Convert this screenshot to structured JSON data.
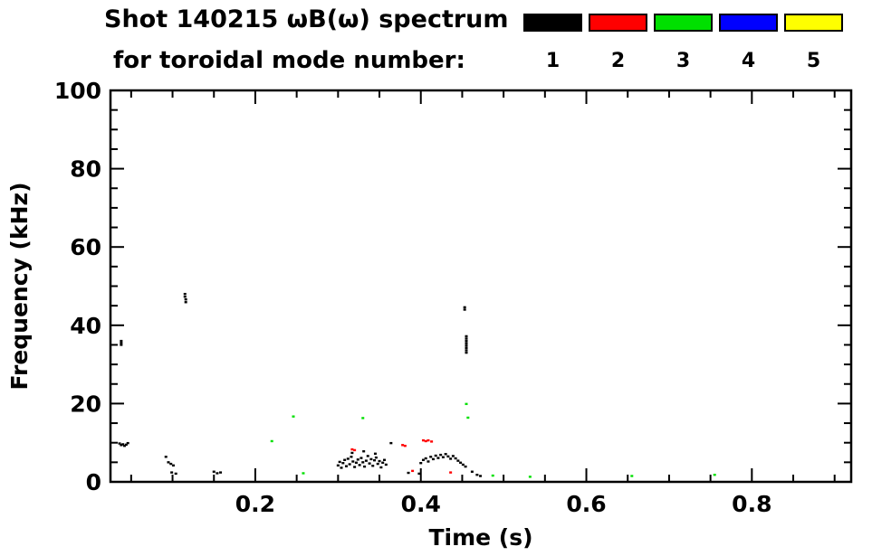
{
  "header": {
    "title_line1": "Shot 140215 ωB(ω) spectrum",
    "title_line2": "for toroidal mode number:"
  },
  "legend": {
    "items": [
      {
        "label": "1",
        "color": "#000000"
      },
      {
        "label": "2",
        "color": "#ff0000"
      },
      {
        "label": "3",
        "color": "#00e000"
      },
      {
        "label": "4",
        "color": "#0000ff"
      },
      {
        "label": "5",
        "color": "#ffff00"
      }
    ]
  },
  "chart_data": {
    "type": "scatter",
    "title": "Shot 140215 ωB(ω) spectrum for toroidal mode number",
    "xlabel": "Time (s)",
    "ylabel": "Frequency (kHz)",
    "xlim": [
      0.025,
      0.92
    ],
    "ylim": [
      0,
      100
    ],
    "xticks": [
      0.2,
      0.4,
      0.6,
      0.8
    ],
    "xtick_labels": [
      "0.2",
      "0.4",
      "0.6",
      "0.8"
    ],
    "x_minor_step": 0.05,
    "yticks": [
      0,
      20,
      40,
      60,
      80,
      100
    ],
    "ytick_labels": [
      "0",
      "20",
      "40",
      "60",
      "80",
      "100"
    ],
    "y_minor_step": 5,
    "grid": false,
    "legend_position": "top-right",
    "series": [
      {
        "name": "mode 1",
        "color": "#000000",
        "points": [
          [
            0.036,
            9.8
          ],
          [
            0.038,
            9.4
          ],
          [
            0.04,
            9.6
          ],
          [
            0.042,
            9.2
          ],
          [
            0.044,
            9.5
          ],
          [
            0.046,
            9.9
          ],
          [
            0.038,
            35.0
          ],
          [
            0.038,
            35.5
          ],
          [
            0.038,
            36.0
          ],
          [
            0.092,
            6.4
          ],
          [
            0.095,
            5.0
          ],
          [
            0.098,
            4.6
          ],
          [
            0.101,
            4.2
          ],
          [
            0.099,
            2.4
          ],
          [
            0.104,
            2.1
          ],
          [
            0.115,
            48.0
          ],
          [
            0.115,
            47.3
          ],
          [
            0.116,
            46.6
          ],
          [
            0.116,
            45.9
          ],
          [
            0.15,
            2.6
          ],
          [
            0.154,
            2.2
          ],
          [
            0.158,
            2.4
          ],
          [
            0.3,
            4.2
          ],
          [
            0.302,
            5.1
          ],
          [
            0.304,
            3.6
          ],
          [
            0.306,
            4.8
          ],
          [
            0.308,
            5.6
          ],
          [
            0.31,
            4.0
          ],
          [
            0.312,
            5.9
          ],
          [
            0.314,
            4.5
          ],
          [
            0.316,
            6.4
          ],
          [
            0.318,
            5.2
          ],
          [
            0.32,
            3.8
          ],
          [
            0.322,
            4.9
          ],
          [
            0.324,
            5.7
          ],
          [
            0.326,
            4.3
          ],
          [
            0.328,
            6.1
          ],
          [
            0.33,
            5.0
          ],
          [
            0.332,
            3.9
          ],
          [
            0.334,
            5.4
          ],
          [
            0.336,
            6.6
          ],
          [
            0.338,
            4.7
          ],
          [
            0.34,
            5.8
          ],
          [
            0.342,
            4.1
          ],
          [
            0.344,
            5.5
          ],
          [
            0.346,
            6.2
          ],
          [
            0.348,
            4.6
          ],
          [
            0.35,
            5.3
          ],
          [
            0.352,
            3.7
          ],
          [
            0.354,
            4.9
          ],
          [
            0.356,
            5.6
          ],
          [
            0.358,
            4.4
          ],
          [
            0.317,
            7.4
          ],
          [
            0.331,
            7.8
          ],
          [
            0.345,
            7.2
          ],
          [
            0.364,
            9.9
          ],
          [
            0.385,
            2.3
          ],
          [
            0.398,
            2.1
          ],
          [
            0.4,
            4.8
          ],
          [
            0.403,
            5.6
          ],
          [
            0.406,
            6.0
          ],
          [
            0.409,
            5.2
          ],
          [
            0.412,
            6.4
          ],
          [
            0.415,
            5.8
          ],
          [
            0.418,
            6.7
          ],
          [
            0.421,
            6.1
          ],
          [
            0.424,
            6.9
          ],
          [
            0.427,
            6.3
          ],
          [
            0.43,
            7.1
          ],
          [
            0.433,
            6.5
          ],
          [
            0.436,
            5.9
          ],
          [
            0.439,
            6.6
          ],
          [
            0.442,
            6.0
          ],
          [
            0.445,
            5.4
          ],
          [
            0.448,
            4.9
          ],
          [
            0.451,
            4.4
          ],
          [
            0.454,
            3.9
          ],
          [
            0.455,
            33.0
          ],
          [
            0.455,
            33.6
          ],
          [
            0.455,
            34.2
          ],
          [
            0.455,
            34.8
          ],
          [
            0.455,
            35.4
          ],
          [
            0.455,
            36.0
          ],
          [
            0.455,
            36.6
          ],
          [
            0.455,
            37.2
          ],
          [
            0.453,
            44.6
          ],
          [
            0.453,
            44.0
          ],
          [
            0.462,
            2.6
          ],
          [
            0.468,
            1.8
          ],
          [
            0.472,
            1.5
          ]
        ]
      },
      {
        "name": "mode 2",
        "color": "#ff0000",
        "points": [
          [
            0.317,
            8.3
          ],
          [
            0.32,
            8.1
          ],
          [
            0.378,
            9.4
          ],
          [
            0.381,
            9.2
          ],
          [
            0.403,
            10.6
          ],
          [
            0.406,
            10.4
          ],
          [
            0.409,
            10.6
          ],
          [
            0.413,
            10.3
          ],
          [
            0.39,
            2.8
          ],
          [
            0.436,
            2.4
          ]
        ]
      },
      {
        "name": "mode 3",
        "color": "#00e000",
        "points": [
          [
            0.22,
            10.4
          ],
          [
            0.246,
            16.7
          ],
          [
            0.258,
            2.2
          ],
          [
            0.33,
            16.3
          ],
          [
            0.455,
            19.9
          ],
          [
            0.457,
            16.4
          ],
          [
            0.487,
            1.6
          ],
          [
            0.532,
            1.3
          ],
          [
            0.655,
            1.5
          ],
          [
            0.755,
            1.8
          ]
        ]
      },
      {
        "name": "mode 4",
        "color": "#0000ff",
        "points": []
      },
      {
        "name": "mode 5",
        "color": "#ffff00",
        "points": []
      }
    ]
  }
}
